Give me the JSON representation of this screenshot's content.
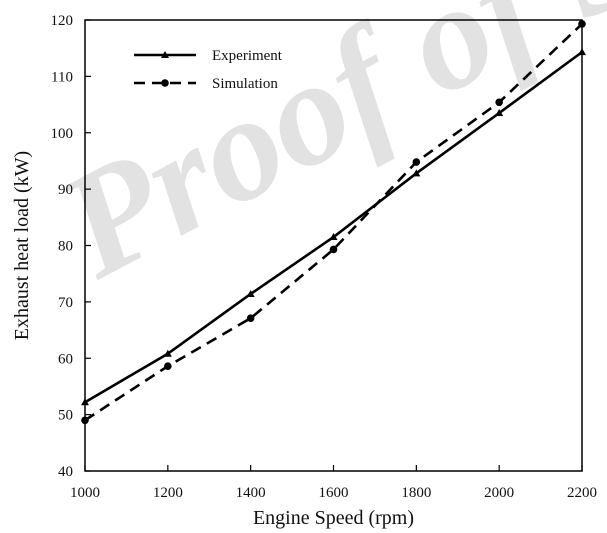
{
  "chart_data": {
    "type": "line",
    "xlabel": "Engine Speed (rpm)",
    "ylabel": "Exhaust heat load (kW)",
    "x": [
      1000,
      1200,
      1400,
      1600,
      1800,
      2000,
      2200
    ],
    "xticks": [
      "1000",
      "1200",
      "1400",
      "1600",
      "1800",
      "2000",
      "2200"
    ],
    "yticks": [
      "40",
      "50",
      "60",
      "70",
      "80",
      "90",
      "100",
      "110",
      "120"
    ],
    "xlim": [
      1000,
      2200
    ],
    "ylim": [
      40,
      120
    ],
    "grid": false,
    "legend_position": "top-left",
    "series": [
      {
        "name": "Experiment",
        "values": [
          52.2,
          60.8,
          71.4,
          81.5,
          92.8,
          103.5,
          114.3
        ],
        "line_style": "solid",
        "marker": "triangle",
        "color": "#000000"
      },
      {
        "name": "Simulation",
        "values": [
          49.0,
          58.6,
          67.1,
          79.3,
          94.8,
          105.4,
          119.3
        ],
        "line_style": "dashed",
        "marker": "circle",
        "color": "#000000"
      }
    ]
  },
  "watermark": {
    "text": "Proof of S",
    "color": "#d9d9d9"
  }
}
